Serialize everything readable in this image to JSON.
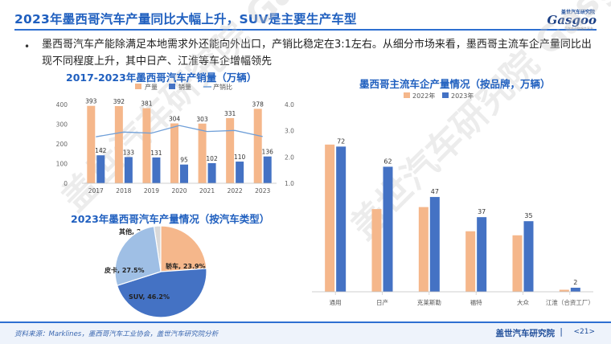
{
  "title": "2023年墨西哥汽车产量同比大幅上升，SUV是主要生产车型",
  "logo": {
    "top": "盖世汽车研究院",
    "main": "Gasgoo",
    "sub": "汽车产业链服务平台"
  },
  "bullet": "墨西哥汽车产能除满足本地需求外还能向外出口，产销比稳定在3:1左右。从细分市场来看，墨西哥主流车企产量同比出现不同程度上升，其中日产、江淮等车企增幅领先",
  "watermark": "盖世汽车研究院 Gasgoo",
  "charts": {
    "left_top_title": "2017-2023年墨西哥汽车产销量（万辆）",
    "pie_title": "2023年墨西哥汽车产量情况（按汽车类型）",
    "right_title": "墨西哥主流车企产量情况（按品牌，万辆）"
  },
  "chart_data": [
    {
      "type": "bar",
      "title": "2017-2023年墨西哥汽车产销量（万辆）",
      "categories": [
        "2017",
        "2018",
        "2019",
        "2020",
        "2021",
        "2022",
        "2023"
      ],
      "series": [
        {
          "name": "产量",
          "values": [
            393,
            392,
            381,
            304,
            303,
            331,
            378
          ],
          "color": "#f5b78b"
        },
        {
          "name": "销量",
          "values": [
            142,
            133,
            131,
            95,
            102,
            110,
            136
          ],
          "color": "#4472c4"
        },
        {
          "name": "产销比",
          "type": "line",
          "axis": "right",
          "values": [
            2.77,
            2.95,
            2.91,
            3.2,
            2.97,
            3.01,
            2.78
          ],
          "color": "#6f9fd8"
        }
      ],
      "ylim": [
        0,
        400
      ],
      "yticks": [
        "0",
        "100",
        "200",
        "300",
        "400"
      ],
      "y2lim": [
        1.0,
        4.0
      ],
      "y2ticks": [
        "1.0",
        "2.0",
        "3.0",
        "4.0"
      ],
      "legend": "top"
    },
    {
      "type": "pie",
      "title": "2023年墨西哥汽车产量情况（按汽车类型）",
      "slices": [
        {
          "name": "其他",
          "value": 2.4,
          "label": "其他, 2.4%",
          "color": "#d9d9d9"
        },
        {
          "name": "轿车",
          "value": 23.9,
          "label": "轿车, 23.9%",
          "color": "#f5b78b"
        },
        {
          "name": "SUV",
          "value": 46.2,
          "label": "SUV, 46.2%",
          "color": "#4472c4"
        },
        {
          "name": "皮卡",
          "value": 27.5,
          "label": "皮卡, 27.5%",
          "color": "#9fbfe5"
        }
      ]
    },
    {
      "type": "bar",
      "title": "墨西哥主流车企产量情况（按品牌，万辆）",
      "categories": [
        "通用",
        "日产",
        "克莱斯勒",
        "福特",
        "大众",
        "江淮（合资工厂）"
      ],
      "series": [
        {
          "name": "2022年",
          "values": [
            73,
            41,
            42,
            30,
            28,
            1
          ],
          "color": "#f5b78b"
        },
        {
          "name": "2023年",
          "values": [
            72,
            62,
            47,
            37,
            35,
            2
          ],
          "color": "#4472c4"
        }
      ],
      "data_labels_series": "2023年",
      "ylim": [
        0,
        80
      ],
      "legend": "top"
    }
  ],
  "footer": {
    "source": "资料来源：Marklines，墨西哥汽车工业协会，盖世汽车研究院分析",
    "org": "盖世汽车研究院",
    "sep": "|",
    "page": "<21>"
  }
}
